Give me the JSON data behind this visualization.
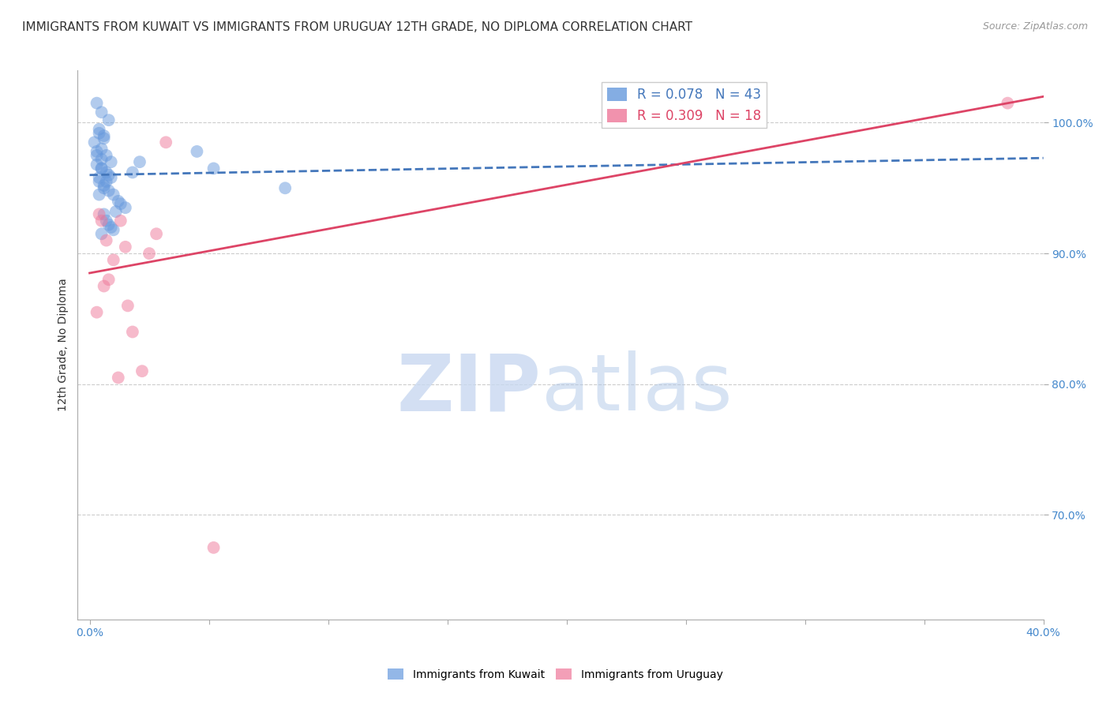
{
  "title": "IMMIGRANTS FROM KUWAIT VS IMMIGRANTS FROM URUGUAY 12TH GRADE, NO DIPLOMA CORRELATION CHART",
  "source": "Source: ZipAtlas.com",
  "ylabel": "12th Grade, No Diploma",
  "x_tick_labels": [
    "0.0%",
    "",
    "",
    "",
    "",
    "",
    "",
    "",
    "40.0%"
  ],
  "x_tick_values": [
    0.0,
    5.0,
    10.0,
    15.0,
    20.0,
    25.0,
    30.0,
    35.0,
    40.0
  ],
  "y_tick_labels": [
    "100.0%",
    "90.0%",
    "80.0%",
    "70.0%"
  ],
  "y_tick_values": [
    100.0,
    90.0,
    80.0,
    70.0
  ],
  "xlim": [
    -0.5,
    40.0
  ],
  "ylim": [
    62.0,
    104.0
  ],
  "legend_r1": "R = 0.078",
  "legend_n1": "N = 43",
  "legend_r2": "R = 0.309",
  "legend_n2": "N = 18",
  "kuwait_scatter_x": [
    0.3,
    0.5,
    0.8,
    0.4,
    0.6,
    0.2,
    0.5,
    0.7,
    0.9,
    0.4,
    0.6,
    0.3,
    0.5,
    0.8,
    0.4,
    0.6,
    0.3,
    0.5,
    0.7,
    0.4,
    0.6,
    0.8,
    0.3,
    0.5,
    0.7,
    0.4,
    4.5,
    5.2,
    8.2,
    1.8,
    2.1,
    0.9,
    1.2,
    1.5,
    0.6,
    1.0,
    1.3,
    0.7,
    0.9,
    1.1,
    0.5,
    0.8,
    1.0
  ],
  "kuwait_scatter_y": [
    101.5,
    100.8,
    100.2,
    99.5,
    99.0,
    98.5,
    98.0,
    97.5,
    97.0,
    99.2,
    98.8,
    97.8,
    96.5,
    96.0,
    95.5,
    95.0,
    96.8,
    97.2,
    96.2,
    95.8,
    95.2,
    94.8,
    97.5,
    96.5,
    95.5,
    94.5,
    97.8,
    96.5,
    95.0,
    96.2,
    97.0,
    95.8,
    94.0,
    93.5,
    93.0,
    94.5,
    93.8,
    92.5,
    92.0,
    93.2,
    91.5,
    92.2,
    91.8
  ],
  "uruguay_scatter_x": [
    1.5,
    3.2,
    0.4,
    0.8,
    1.0,
    2.2,
    1.2,
    2.8,
    0.5,
    1.6,
    0.3,
    1.8,
    5.2,
    38.5,
    2.5,
    0.7,
    1.3,
    0.6
  ],
  "uruguay_scatter_y": [
    90.5,
    98.5,
    93.0,
    88.0,
    89.5,
    81.0,
    80.5,
    91.5,
    92.5,
    86.0,
    85.5,
    84.0,
    67.5,
    101.5,
    90.0,
    91.0,
    92.5,
    87.5
  ],
  "kuwait_line_x0": 0.0,
  "kuwait_line_x1": 40.0,
  "kuwait_line_y0": 96.0,
  "kuwait_line_y1": 97.3,
  "uruguay_line_x0": 0.0,
  "uruguay_line_x1": 40.0,
  "uruguay_line_y0": 88.5,
  "uruguay_line_y1": 102.0,
  "kuwait_line_color": "#4477bb",
  "uruguay_line_color": "#dd4466",
  "scatter_blue_color": "#6699dd",
  "scatter_pink_color": "#ee7799",
  "scatter_alpha": 0.5,
  "scatter_size": 130,
  "grid_color": "#cccccc",
  "background_color": "#ffffff",
  "tick_label_color": "#4488cc",
  "title_color": "#333333",
  "title_fontsize": 11,
  "source_fontsize": 9,
  "ylabel_fontsize": 10,
  "legend_fontsize": 12,
  "bottom_legend_label1": "Immigrants from Kuwait",
  "bottom_legend_label2": "Immigrants from Uruguay"
}
